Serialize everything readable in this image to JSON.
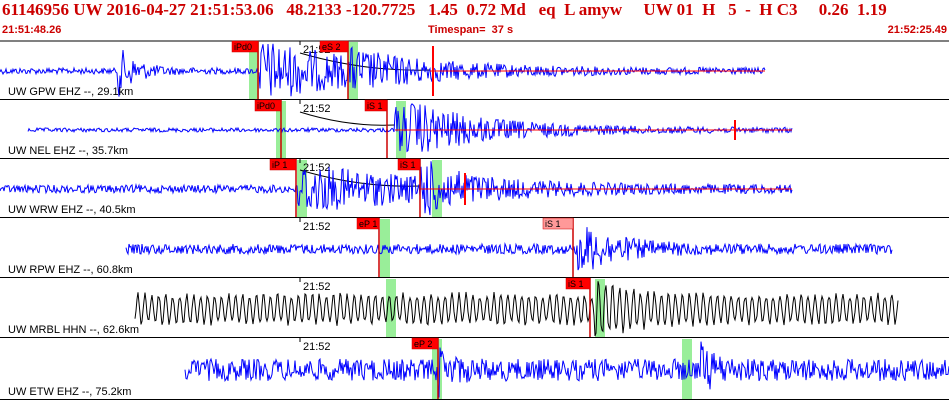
{
  "header": {
    "line": "61146956 UW 2016-04-27 21:51:53.06   48.2133 -120.7725   1.45  0.72 Md   eq  L amyw     UW 01  H   5  -  H C3     0.26  1.19",
    "start_time": "21:51:48.26",
    "timespan": "Timespan=  37 s",
    "end_time": "21:52:25.49"
  },
  "colors": {
    "text_red": "#cc0000",
    "trace_blue": "#0000ff",
    "trace_black": "#000000",
    "pick_red": "#ff0000",
    "pick_pink": "#ff9999",
    "window_green": "#99ee99",
    "panel_border": "#000000"
  },
  "minute_tick": "21:52",
  "panels": [
    {
      "station": "UW GPW EHZ --, 29.1km",
      "color": "blue",
      "picks": [
        {
          "label": "iPd0"
        },
        {
          "label": "eS 2"
        }
      ]
    },
    {
      "station": "UW NEL EHZ --, 35.7km",
      "color": "blue",
      "picks": [
        {
          "label": "iPd0"
        },
        {
          "label": "iS 1"
        }
      ]
    },
    {
      "station": "UW WRW EHZ --, 40.5km",
      "color": "blue",
      "picks": [
        {
          "label": "iP 1"
        },
        {
          "label": "iS 1"
        }
      ]
    },
    {
      "station": "UW RPW EHZ --, 60.8km",
      "color": "blue",
      "picks": [
        {
          "label": "eP 1"
        },
        {
          "label": "iS 1"
        }
      ]
    },
    {
      "station": "UW MRBL HHN --, 62.6km",
      "color": "black",
      "picks": [
        {
          "label": "iS 1"
        }
      ]
    },
    {
      "station": "UW ETW EHZ --, 75.2km",
      "color": "blue",
      "picks": [
        {
          "label": "eP 2"
        }
      ]
    }
  ]
}
